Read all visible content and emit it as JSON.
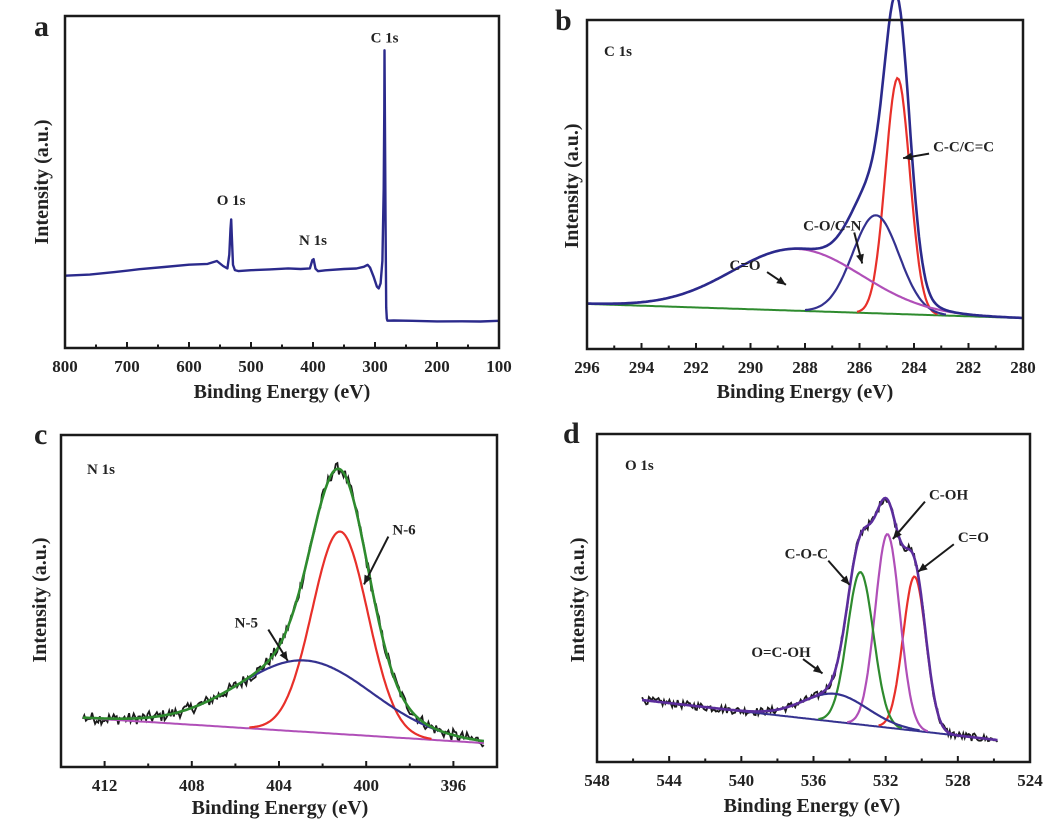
{
  "chart_data": [
    {
      "id": "a",
      "type": "line",
      "panel_label": "a",
      "title": "",
      "xlabel": "Binding Energy (eV)",
      "ylabel": "Intensity (a.u.)",
      "xlim": [
        800,
        100
      ],
      "ylim": [
        0,
        100
      ],
      "xticks": [
        800,
        700,
        600,
        500,
        400,
        300,
        200,
        100
      ],
      "minor_xticks": [
        750,
        650,
        550,
        450,
        350,
        250,
        150
      ],
      "show_yticks": false,
      "grid": false,
      "series": [
        {
          "name": "Survey spectrum",
          "color": "#2b2a8c",
          "kind": "points",
          "x": [
            800,
            760,
            720,
            680,
            640,
            600,
            570,
            555,
            545,
            538,
            535,
            533,
            532,
            531,
            529,
            526,
            520,
            500,
            470,
            440,
            420,
            405,
            401,
            399,
            396,
            392,
            380,
            350,
            330,
            318,
            312,
            308,
            302,
            297,
            294,
            291,
            288,
            286,
            285,
            284.6,
            284,
            283,
            282,
            281,
            280,
            270,
            240,
            200,
            160,
            130,
            100
          ],
          "y": [
            21.7,
            22.2,
            22.8,
            23.5,
            24.3,
            25.0,
            25.5,
            26.0,
            24.6,
            23.8,
            28.0,
            36.0,
            38.6,
            34.0,
            25.0,
            23.6,
            23.3,
            23.3,
            23.5,
            23.8,
            24.0,
            24.0,
            26.4,
            26.8,
            24.0,
            23.2,
            23.2,
            23.6,
            24.0,
            24.5,
            24.9,
            24.4,
            21.5,
            18.6,
            18.0,
            19.5,
            26.0,
            48.0,
            72.0,
            89.8,
            70.0,
            40.0,
            12.0,
            9.0,
            8.2,
            8.1,
            8.1,
            8.2,
            8.0,
            8.2,
            8.1
          ]
        }
      ],
      "annotations": [
        {
          "text": "O 1s",
          "x": 532,
          "y": 43
        },
        {
          "text": "N 1s",
          "x": 400,
          "y": 31
        },
        {
          "text": "C 1s",
          "x": 284.6,
          "y": 92
        }
      ]
    },
    {
      "id": "b",
      "type": "line",
      "panel_label": "b",
      "title": "C 1s",
      "xlabel": "Binding Energy (eV)",
      "ylabel": "Intensity (a.u.)",
      "xlim": [
        296,
        280
      ],
      "ylim": [
        0,
        100
      ],
      "xticks": [
        296,
        294,
        292,
        290,
        288,
        286,
        284,
        282,
        280
      ],
      "minor_xticks": [
        295,
        293,
        291,
        289,
        287,
        285,
        283,
        281
      ],
      "show_yticks": false,
      "grid": false,
      "baseline": {
        "name": "Background",
        "color": "#2e8b2e",
        "x": [
          296,
          280
        ],
        "y": [
          13.7,
          9.4
        ]
      },
      "components": [
        {
          "name": "C-C/C=C",
          "color": "#e8302a",
          "center": 284.6,
          "height": 71.7,
          "fwhm": 1.05
        },
        {
          "name": "C-O/C-N",
          "color": "#34318f",
          "center": 285.4,
          "height": 29.8,
          "fwhm": 2.0
        },
        {
          "name": "C=O",
          "color": "#b04fb8",
          "center": 288.3,
          "height": 18.8,
          "fwhm": 5.6
        }
      ],
      "envelope": {
        "name": "Envelope",
        "color": "#2b2a8c"
      },
      "annotations": [
        {
          "text": "C-C/C=C",
          "x": 283.3,
          "y": 60,
          "arrow_to": [
            284.4,
            58
          ]
        },
        {
          "text": "C-O/C-N",
          "x": 287.0,
          "y": 36,
          "arrow_to": [
            285.9,
            26
          ]
        },
        {
          "text": "C=O",
          "x": 290.2,
          "y": 24,
          "arrow_to": [
            288.7,
            19.5
          ]
        }
      ]
    },
    {
      "id": "c",
      "type": "line",
      "panel_label": "c",
      "title": "N 1s",
      "xlabel": "Binding Energy (eV)",
      "ylabel": "Intensity (a.u.)",
      "xlim": [
        414,
        394
      ],
      "ylim": [
        0,
        100
      ],
      "xticks": [
        412,
        408,
        404,
        400,
        396
      ],
      "minor_xticks": [
        410,
        406,
        402,
        398
      ],
      "show_yticks": false,
      "grid": false,
      "data_range": [
        413.0,
        394.6
      ],
      "raw": {
        "name": "Raw data",
        "color": "#1a1a1a",
        "noise": 1.8
      },
      "baseline": {
        "name": "Background",
        "color": "#b04fb8",
        "x": [
          413.0,
          394.6
        ],
        "y": [
          14.8,
          7.2
        ]
      },
      "components": [
        {
          "name": "N-6",
          "color": "#e8302a",
          "center": 401.2,
          "height": 61.0,
          "fwhm": 3.0
        },
        {
          "name": "N-5",
          "color": "#34318f",
          "center": 402.8,
          "height": 21.5,
          "fwhm": 7.2
        }
      ],
      "envelope": {
        "name": "Fitted envelope",
        "color": "#2e8b2e"
      },
      "annotations": [
        {
          "text": "N-6",
          "x": 398.8,
          "y": 70,
          "arrow_to": [
            400.1,
            55
          ]
        },
        {
          "text": "N-5",
          "x": 405.5,
          "y": 42,
          "arrow_to": [
            403.6,
            32
          ]
        }
      ]
    },
    {
      "id": "d",
      "type": "line",
      "panel_label": "d",
      "title": "O 1s",
      "xlabel": "Binding Energy (eV)",
      "ylabel": "Intensity (a.u.)",
      "xlim": [
        548,
        524
      ],
      "ylim": [
        0,
        100
      ],
      "xticks": [
        548,
        544,
        540,
        536,
        532,
        528,
        524
      ],
      "minor_xticks": [
        546,
        542,
        538,
        534,
        530,
        526
      ],
      "show_yticks": false,
      "grid": false,
      "data_range": [
        545.5,
        525.8
      ],
      "raw": {
        "name": "Raw data",
        "color": "#1a1a1a",
        "noise": 1.2
      },
      "baseline": {
        "name": "Background",
        "color": "#34318f",
        "x": [
          545.5,
          525.8
        ],
        "y": [
          18.9,
          6.7
        ]
      },
      "components": [
        {
          "name": "C=O",
          "color": "#e8302a",
          "center": 530.4,
          "height": 47.0,
          "fwhm": 1.5
        },
        {
          "name": "C-OH",
          "color": "#b04fb8",
          "center": 531.9,
          "height": 59.0,
          "fwhm": 1.6
        },
        {
          "name": "C-O-C",
          "color": "#2e8b2e",
          "center": 533.4,
          "height": 46.5,
          "fwhm": 1.7
        },
        {
          "name": "O=C-OH",
          "color": "#34318f",
          "center": 534.8,
          "height": 8.5,
          "fwhm": 4.2
        }
      ],
      "envelope": {
        "name": "Fitted envelope",
        "color": "#5b2d9c"
      },
      "annotations": [
        {
          "text": "C-OH",
          "x": 529.6,
          "y": 80,
          "arrow_to": [
            531.6,
            68
          ]
        },
        {
          "text": "C=O",
          "x": 528.0,
          "y": 67,
          "arrow_to": [
            530.2,
            58
          ]
        },
        {
          "text": "C-O-C",
          "x": 536.4,
          "y": 62,
          "arrow_to": [
            534.0,
            54
          ]
        },
        {
          "text": "O=C-OH",
          "x": 537.8,
          "y": 32,
          "arrow_to": [
            535.5,
            27
          ]
        }
      ]
    }
  ]
}
